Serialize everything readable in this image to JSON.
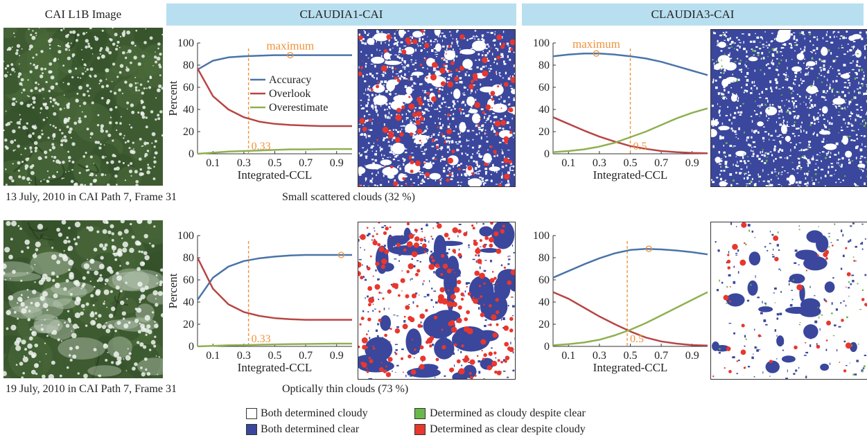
{
  "headers": {
    "image_column": "CAI L1B Image",
    "claudia1": "CLAUDIA1-CAI",
    "claudia3": "CLAUDIA3-CAI"
  },
  "rows": [
    {
      "date_caption": "13 July, 2010 in CAI Path 7, Frame 31",
      "cloud_caption": "Small scattered clouds (32 %)"
    },
    {
      "date_caption": "19 July, 2010 in CAI Path 7, Frame 31",
      "cloud_caption": "Optically thin clouds (73 %)"
    }
  ],
  "legend": {
    "items": [
      {
        "label": "Both determined cloudy",
        "color": "#ffffff"
      },
      {
        "label": "Determined as cloudy despite clear",
        "color": "#6bb84a"
      },
      {
        "label": "Both determined clear",
        "color": "#3a479c"
      },
      {
        "label": "Determined as clear despite cloudy",
        "color": "#e8372e"
      }
    ]
  },
  "colors": {
    "accuracy": "#4a74a8",
    "overlook": "#b84545",
    "overestimate": "#8fb050",
    "threshold": "#f0923a",
    "mask_clear": "#3a479c",
    "mask_overestimate": "#6bb84a",
    "mask_overlook": "#e8372e"
  },
  "chart_data": [
    {
      "type": "line",
      "panel": "CLAUDIA1-CAI, 13 July 2010",
      "xlabel": "Integrated-CCL",
      "ylabel": "Percent",
      "xlim": [
        0,
        1.0
      ],
      "ylim": [
        0,
        100
      ],
      "xticks": [
        0.1,
        0.3,
        0.5,
        0.7,
        0.9
      ],
      "yticks": [
        0,
        20,
        40,
        60,
        80,
        100
      ],
      "x": [
        0.0,
        0.1,
        0.2,
        0.3,
        0.4,
        0.5,
        0.6,
        0.7,
        0.8,
        0.9,
        1.0
      ],
      "series": [
        {
          "name": "Accuracy",
          "values": [
            76,
            84,
            87,
            88,
            88.5,
            89,
            89,
            89,
            89,
            89,
            89
          ]
        },
        {
          "name": "Overlook",
          "values": [
            77,
            52,
            40,
            33,
            29,
            27,
            26,
            25.5,
            25,
            25,
            25
          ]
        },
        {
          "name": "Overestimate",
          "values": [
            0,
            1,
            2,
            2.5,
            3,
            3.5,
            4,
            4,
            4.2,
            4.3,
            4.3
          ]
        }
      ],
      "threshold": {
        "x": 0.33,
        "label": "0.33"
      },
      "maximum": {
        "x": 0.6,
        "y": 89,
        "label": "maximum"
      },
      "legend": {
        "placement": "center-right"
      }
    },
    {
      "type": "line",
      "panel": "CLAUDIA3-CAI, 13 July 2010",
      "xlabel": "Integrated-CCL",
      "ylabel": "",
      "xlim": [
        0,
        1.0
      ],
      "ylim": [
        0,
        100
      ],
      "xticks": [
        0.1,
        0.3,
        0.5,
        0.7,
        0.9
      ],
      "yticks": [
        0,
        20,
        40,
        60,
        80,
        100
      ],
      "x": [
        0.0,
        0.1,
        0.2,
        0.3,
        0.4,
        0.5,
        0.6,
        0.7,
        0.8,
        0.9,
        1.0
      ],
      "series": [
        {
          "name": "Accuracy",
          "values": [
            88,
            89.5,
            90.5,
            90.5,
            89.5,
            88,
            86,
            83,
            79,
            75,
            71
          ]
        },
        {
          "name": "Overlook",
          "values": [
            33,
            27,
            21,
            15.5,
            11,
            7,
            4.5,
            2.5,
            1.5,
            0.8,
            0.5
          ]
        },
        {
          "name": "Overestimate",
          "values": [
            1.5,
            2.5,
            4,
            6.5,
            10,
            15,
            20,
            26,
            32,
            37,
            41
          ]
        }
      ],
      "threshold": {
        "x": 0.5,
        "label": "0.5"
      },
      "maximum": {
        "x": 0.28,
        "y": 90.5,
        "label": "maximum"
      }
    },
    {
      "type": "line",
      "panel": "CLAUDIA1-CAI, 19 July 2010",
      "xlabel": "Integrated-CCL",
      "ylabel": "Percent",
      "xlim": [
        0,
        1.0
      ],
      "ylim": [
        0,
        100
      ],
      "xticks": [
        0.1,
        0.3,
        0.5,
        0.7,
        0.9
      ],
      "yticks": [
        0,
        20,
        40,
        60,
        80,
        100
      ],
      "x": [
        0.0,
        0.1,
        0.2,
        0.3,
        0.4,
        0.5,
        0.6,
        0.7,
        0.8,
        0.9,
        1.0
      ],
      "series": [
        {
          "name": "Accuracy",
          "values": [
            42,
            62,
            72,
            77,
            79.5,
            81,
            82,
            82.5,
            82.5,
            82.5,
            82.5
          ]
        },
        {
          "name": "Overlook",
          "values": [
            80,
            52,
            38,
            31,
            27.5,
            25.5,
            24.5,
            24,
            24,
            24,
            24
          ]
        },
        {
          "name": "Overestimate",
          "values": [
            0,
            0.5,
            1,
            1.2,
            1.5,
            1.8,
            2,
            2.2,
            2.4,
            2.5,
            2.5
          ]
        }
      ],
      "threshold": {
        "x": 0.33,
        "label": "0.33"
      },
      "maximum": {
        "x": 0.93,
        "y": 82.5,
        "label": ""
      }
    },
    {
      "type": "line",
      "panel": "CLAUDIA3-CAI, 19 July 2010",
      "xlabel": "Integrated-CCL",
      "ylabel": "",
      "xlim": [
        0,
        1.0
      ],
      "ylim": [
        0,
        100
      ],
      "xticks": [
        0.1,
        0.3,
        0.5,
        0.7,
        0.9
      ],
      "yticks": [
        0,
        20,
        40,
        60,
        80,
        100
      ],
      "x": [
        0.0,
        0.1,
        0.2,
        0.3,
        0.4,
        0.5,
        0.6,
        0.7,
        0.8,
        0.9,
        1.0
      ],
      "series": [
        {
          "name": "Accuracy",
          "values": [
            62,
            68,
            74,
            79.5,
            84,
            87,
            88,
            87.5,
            86.5,
            85,
            83
          ]
        },
        {
          "name": "Overlook",
          "values": [
            49,
            43,
            35,
            27,
            20,
            13.5,
            8,
            4.5,
            2.5,
            1.2,
            0.8
          ]
        },
        {
          "name": "Overestimate",
          "values": [
            1,
            2,
            3.5,
            6,
            10,
            15,
            21,
            28,
            35,
            42,
            49
          ]
        }
      ],
      "threshold": {
        "x": 0.48,
        "label": "0.5"
      },
      "maximum": {
        "x": 0.62,
        "y": 88,
        "label": ""
      }
    }
  ]
}
